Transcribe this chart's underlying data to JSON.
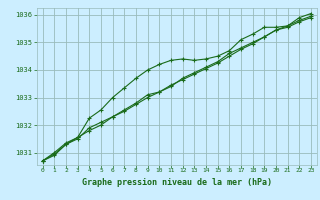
{
  "title": "Graphe pression niveau de la mer (hPa)",
  "bg_color": "#cceeff",
  "grid_color": "#99bbbb",
  "line_color": "#1a6b1a",
  "marker_color": "#1a6b1a",
  "xlim": [
    -0.5,
    23.5
  ],
  "ylim": [
    1030.55,
    1036.25
  ],
  "yticks": [
    1031,
    1032,
    1033,
    1034,
    1035,
    1036
  ],
  "xticks": [
    0,
    1,
    2,
    3,
    4,
    5,
    6,
    7,
    8,
    9,
    10,
    11,
    12,
    13,
    14,
    15,
    16,
    17,
    18,
    19,
    20,
    21,
    22,
    23
  ],
  "series1": [
    1030.7,
    1030.9,
    1031.3,
    1031.55,
    1032.25,
    1032.55,
    1033.0,
    1033.35,
    1033.7,
    1034.0,
    1034.2,
    1034.35,
    1034.4,
    1034.35,
    1034.4,
    1034.5,
    1034.7,
    1035.1,
    1035.3,
    1035.55,
    1035.55,
    1035.6,
    1035.9,
    1036.05
  ],
  "series2": [
    1030.7,
    1031.0,
    1031.35,
    1031.55,
    1031.8,
    1032.0,
    1032.3,
    1032.55,
    1032.8,
    1033.1,
    1033.2,
    1033.4,
    1033.7,
    1033.9,
    1034.1,
    1034.3,
    1034.6,
    1034.8,
    1035.0,
    1035.2,
    1035.45,
    1035.55,
    1035.75,
    1035.9
  ],
  "series3": [
    1030.7,
    1030.95,
    1031.3,
    1031.5,
    1031.9,
    1032.1,
    1032.3,
    1032.5,
    1032.75,
    1033.0,
    1033.2,
    1033.45,
    1033.65,
    1033.85,
    1034.05,
    1034.25,
    1034.5,
    1034.75,
    1034.95,
    1035.2,
    1035.45,
    1035.6,
    1035.8,
    1035.95
  ]
}
